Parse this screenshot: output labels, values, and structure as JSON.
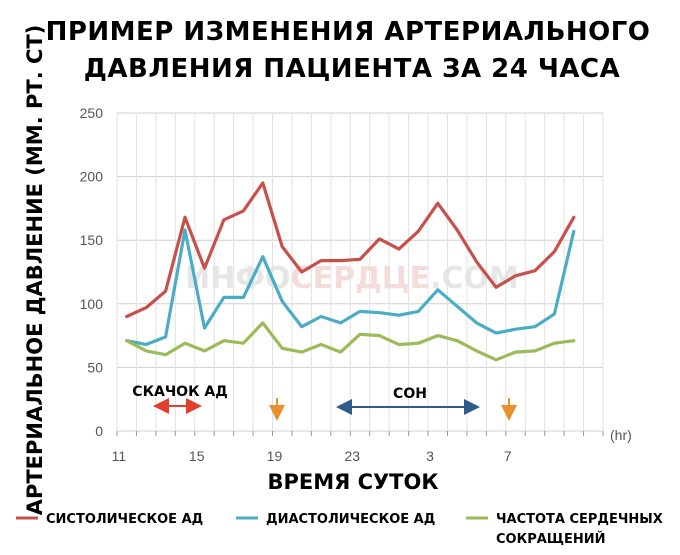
{
  "chart_data": {
    "type": "line",
    "title_line1": "ПРИМЕР ИЗМЕНЕНИЯ АРТЕРИАЛЬНОГО",
    "title_line2": "ДАВЛЕНИЯ ПАЦИЕНТА ЗА 24 ЧАСА",
    "xlabel": "ВРЕМЯ СУТОК",
    "ylabel": "АРТЕРИАЛЬНОЕ ДАВЛЕНИЕ (ММ. РТ. СТ)",
    "x_unit": "(hr)",
    "ylim": [
      0,
      250
    ],
    "y_ticks": [
      0,
      50,
      100,
      150,
      200,
      250
    ],
    "x_ticks": [
      "11",
      "15",
      "19",
      "23",
      "3",
      "7"
    ],
    "x_hours_elapsed_range": [
      0,
      25
    ],
    "grid": true,
    "series": [
      {
        "name": "СИСТОЛИЧЕСКОЕ АД",
        "color": "#c8504b",
        "values": [
          90,
          97,
          110,
          168,
          128,
          166,
          173,
          195,
          145,
          125,
          134,
          134,
          135,
          151,
          143,
          157,
          179,
          158,
          133,
          113,
          122,
          126,
          141,
          168
        ]
      },
      {
        "name": "ДИАСТОЛИЧЕСКОЕ АД",
        "color": "#4bacc6",
        "values": [
          71,
          68,
          74,
          158,
          81,
          105,
          105,
          137,
          102,
          82,
          90,
          85,
          94,
          93,
          91,
          94,
          111,
          98,
          85,
          77,
          80,
          82,
          92,
          157
        ]
      },
      {
        "name": "ЧАСТОТА СЕРДЕЧНЫХ СОКРАЩЕНИЙ",
        "color": "#9bbb59",
        "values": [
          71,
          63,
          60,
          69,
          63,
          71,
          69,
          85,
          65,
          62,
          68,
          62,
          76,
          75,
          68,
          69,
          75,
          71,
          63,
          56,
          62,
          63,
          69,
          71
        ]
      }
    ],
    "annotations": {
      "surge_label": "СКАЧОК АД",
      "sleep_label": "СОН"
    },
    "legend": {
      "position": "bottom",
      "items": [
        "СИСТОЛИЧЕСКОЕ АД",
        "ДИАСТОЛИЧЕСКОЕ АД",
        "ЧАСТОТА СЕРДЕЧНЫХ",
        "СОКРАЩЕНИЙ"
      ]
    },
    "watermark": {
      "part1": "ИНФО",
      "part2": "СЕРДЦЕ",
      "part3": ".COM"
    },
    "colors": {
      "surge_arrow": "#e0402a",
      "sleep_arrow": "#2e5b8c",
      "marker_arrow": "#e8912c"
    }
  }
}
